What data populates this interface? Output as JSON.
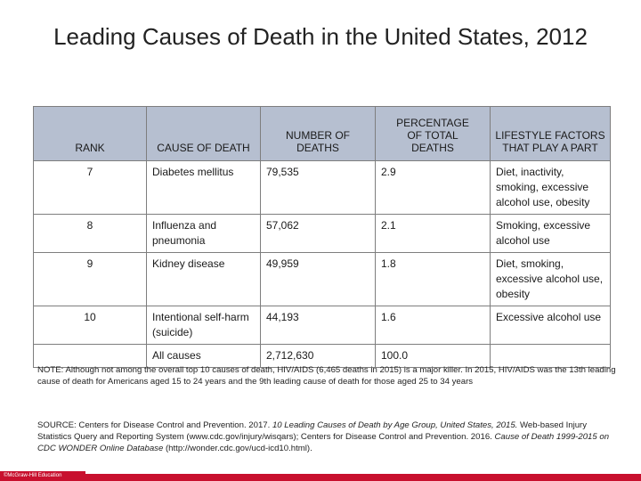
{
  "title": "Leading Causes of Death in the United States, 2012",
  "table": {
    "headers": [
      "RANK",
      "CAUSE OF DEATH",
      "NUMBER OF DEATHS",
      "PERCENTAGE OF TOTAL DEATHS",
      "LIFESTYLE FACTORS THAT PLAY A PART"
    ],
    "rows": [
      {
        "rank": "7",
        "cause": "Diabetes mellitus",
        "deaths": "79,535",
        "percent": "2.9",
        "factors": "Diet, inactivity, smoking, excessive alcohol use, obesity"
      },
      {
        "rank": "8",
        "cause": "Influenza and pneumonia",
        "deaths": "57,062",
        "percent": "2.1",
        "factors": "Smoking, excessive alcohol use"
      },
      {
        "rank": "9",
        "cause": "Kidney disease",
        "deaths": "49,959",
        "percent": "1.8",
        "factors": "Diet, smoking, excessive alcohol use, obesity"
      },
      {
        "rank": "10",
        "cause": "Intentional self-harm (suicide)",
        "deaths": "44,193",
        "percent": "1.6",
        "factors": "Excessive alcohol use"
      },
      {
        "rank": "",
        "cause": "All causes",
        "deaths": "2,712,630",
        "percent": "100.0",
        "factors": ""
      }
    ]
  },
  "note": {
    "label": "NOTE:",
    "text": " Although not among the overall top 10 causes of death, HIV/AIDS (6,465 deaths in 2015) is a major killer. In 2015, HIV/AIDS was the 13th leading cause of death for Americans aged 15 to 24 years and the 9th leading cause of death for those aged 25 to 34 years"
  },
  "source": {
    "label": "SOURCE:",
    "part1": " Centers for Disease Control and Prevention. 2017. ",
    "italic1": "10 Leading Causes of Death by Age Group, United States, 2015.",
    "part2": " Web-based Injury Statistics Query and Reporting System (www.cdc.gov/injury/wisqars); Centers for Disease Control and Prevention. 2016. ",
    "italic2": "Cause of Death 1999-2015 on CDC WONDER Online Database",
    "part3": " (http://wonder.cdc.gov/ucd-icd10.html)."
  },
  "footer": {
    "copyright": "©McGraw-Hill Education"
  },
  "colors": {
    "header_bg": "#b6bfd0",
    "footer_red": "#c8102e"
  }
}
